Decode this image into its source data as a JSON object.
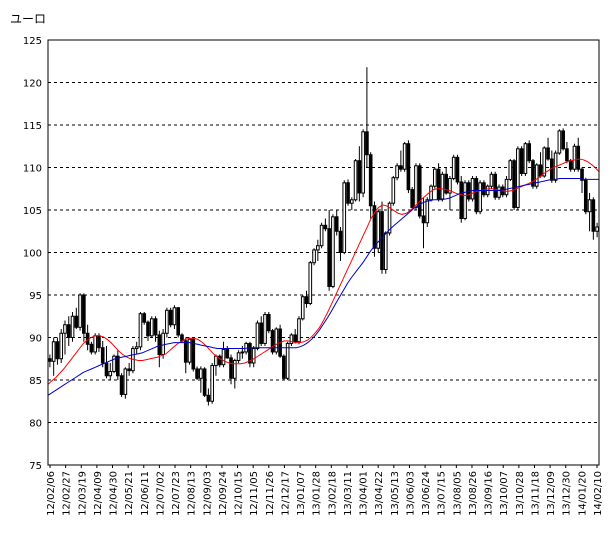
{
  "chart_data": {
    "type": "candlestick",
    "ylabel": "ユーロ",
    "ylim": [
      75,
      125
    ],
    "yticks": [
      75,
      80,
      85,
      90,
      95,
      100,
      105,
      110,
      115,
      120,
      125
    ],
    "grid": true,
    "x_tick_labels": [
      "12/02/06",
      "12/02/27",
      "12/03/19",
      "12/04/09",
      "12/04/30",
      "12/05/21",
      "12/06/11",
      "12/07/02",
      "12/07/23",
      "12/08/13",
      "12/09/03",
      "12/09/24",
      "12/10/15",
      "12/11/05",
      "12/11/26",
      "12/12/17",
      "13/01/07",
      "13/01/28",
      "13/02/18",
      "13/03/11",
      "13/04/01",
      "13/04/22",
      "13/05/13",
      "13/06/03",
      "13/06/24",
      "13/07/15",
      "13/08/05",
      "13/08/26",
      "13/09/16",
      "13/10/07",
      "13/10/28",
      "13/11/18",
      "13/12/09",
      "13/12/30",
      "14/01/20",
      "14/02/10"
    ],
    "candles": [
      [
        87.5,
        88,
        86.5,
        87.2
      ],
      [
        87.2,
        90,
        85.5,
        89.5
      ],
      [
        89.5,
        90,
        86.8,
        87.5
      ],
      [
        87.5,
        91,
        87,
        90.5
      ],
      [
        90.5,
        92,
        88,
        91.5
      ],
      [
        91.5,
        92.5,
        89,
        90
      ],
      [
        90,
        93,
        89.5,
        92.5
      ],
      [
        92.5,
        93.5,
        91,
        91.2
      ],
      [
        91.2,
        95.2,
        90.8,
        95
      ],
      [
        95,
        95.2,
        89.5,
        90.5
      ],
      [
        90.5,
        91.5,
        88.5,
        89.2
      ],
      [
        89.2,
        89.5,
        88,
        88.3
      ],
      [
        88.3,
        90.5,
        88,
        90.2
      ],
      [
        90.2,
        90.5,
        88.3,
        88.8
      ],
      [
        88.8,
        89.6,
        86.5,
        87
      ],
      [
        87,
        89,
        85.2,
        85.5
      ],
      [
        85.5,
        87,
        85,
        86
      ],
      [
        86,
        88,
        85.8,
        87.8
      ],
      [
        87.8,
        88.5,
        85,
        85.5
      ],
      [
        85.5,
        85.8,
        83,
        83.3
      ],
      [
        83.3,
        86.5,
        82.8,
        86.3
      ],
      [
        86.3,
        87,
        85.5,
        86.1
      ],
      [
        86.1,
        89,
        85.8,
        88.7
      ],
      [
        88.7,
        89.5,
        88,
        88.9
      ],
      [
        88.9,
        93,
        88.5,
        92.8
      ],
      [
        92.8,
        93,
        91.5,
        91.8
      ],
      [
        91.8,
        92,
        89.6,
        90.2
      ],
      [
        90.2,
        92.5,
        90,
        92.2
      ],
      [
        92.2,
        92.5,
        89.5,
        90.3
      ],
      [
        90.3,
        90.8,
        86.5,
        88
      ],
      [
        88,
        91,
        87.5,
        90.5
      ],
      [
        90.5,
        93.5,
        90,
        93.2
      ],
      [
        93.2,
        93.5,
        91.2,
        91.5
      ],
      [
        91.5,
        93.8,
        91,
        93.5
      ],
      [
        93.5,
        93.6,
        90,
        90.3
      ],
      [
        90.3,
        90.5,
        89.4,
        89.6
      ],
      [
        89.6,
        90,
        85.8,
        87.1
      ],
      [
        87.1,
        90,
        86.8,
        89.8
      ],
      [
        89.8,
        90,
        86,
        86.3
      ],
      [
        86.3,
        86.6,
        85,
        85.2
      ],
      [
        85.2,
        86.6,
        83.5,
        86.3
      ],
      [
        86.3,
        86.5,
        83,
        83.2
      ],
      [
        83.2,
        84,
        82,
        82.5
      ],
      [
        82.5,
        87,
        82.2,
        86.7
      ],
      [
        86.7,
        88,
        85.5,
        87.8
      ],
      [
        87.8,
        88,
        86.5,
        86.8
      ],
      [
        86.8,
        89.5,
        86.5,
        88.6
      ],
      [
        88.6,
        89,
        87.5,
        87.6
      ],
      [
        87.6,
        88,
        84.5,
        85.2
      ],
      [
        85.2,
        87.5,
        84,
        87.3
      ],
      [
        87.3,
        88.5,
        87,
        88.2
      ],
      [
        88.2,
        89,
        87.5,
        88.3
      ],
      [
        88.3,
        89.5,
        88,
        89.3
      ],
      [
        89.3,
        89.5,
        86.5,
        87
      ],
      [
        87,
        89,
        86.5,
        88.7
      ],
      [
        88.7,
        92,
        88.5,
        91.7
      ],
      [
        91.7,
        92.5,
        89,
        89.3
      ],
      [
        89.3,
        93,
        89,
        92.7
      ],
      [
        92.7,
        93,
        90.5,
        90.8
      ],
      [
        90.8,
        91,
        88,
        88.3
      ],
      [
        88.3,
        91.2,
        88,
        91
      ],
      [
        91,
        91.5,
        87.6,
        87.8
      ],
      [
        87.8,
        88,
        85,
        85.2
      ],
      [
        85.2,
        89.5,
        85,
        89.3
      ],
      [
        89.3,
        90.5,
        89,
        90.3
      ],
      [
        90.3,
        91,
        89.3,
        89.5
      ],
      [
        89.5,
        92.5,
        89.2,
        92.2
      ],
      [
        92.2,
        95,
        92,
        94.8
      ],
      [
        94.8,
        95.5,
        93.5,
        94
      ],
      [
        94,
        99,
        93.8,
        98.8
      ],
      [
        98.8,
        100.5,
        98.5,
        100.3
      ],
      [
        100.3,
        101.5,
        99,
        100.8
      ],
      [
        100.8,
        103.5,
        100.5,
        103.2
      ],
      [
        103.2,
        104,
        102.5,
        102.8
      ],
      [
        102.8,
        105,
        95.5,
        96
      ],
      [
        96,
        104.5,
        95.8,
        104.2
      ],
      [
        104.2,
        105,
        102,
        102.5
      ],
      [
        102.5,
        103,
        99,
        100
      ],
      [
        100,
        108.5,
        99.8,
        108.2
      ],
      [
        108.2,
        108.6,
        105.5,
        105.8
      ],
      [
        105.8,
        106.5,
        105,
        106.2
      ],
      [
        106.2,
        111,
        106,
        110.8
      ],
      [
        110.8,
        112.5,
        106,
        107
      ],
      [
        107,
        114.5,
        106.5,
        114.2
      ],
      [
        114.2,
        121.8,
        110,
        111.5
      ],
      [
        111.5,
        111.8,
        104,
        105.5
      ],
      [
        105.5,
        106,
        99.5,
        100.5
      ],
      [
        100.5,
        105,
        100,
        104.8
      ],
      [
        104.8,
        106,
        97.5,
        98
      ],
      [
        98,
        102.5,
        97.5,
        102.3
      ],
      [
        102.3,
        106,
        102,
        105.8
      ],
      [
        105.8,
        109,
        105.5,
        108.8
      ],
      [
        108.8,
        110.5,
        108.5,
        110.2
      ],
      [
        110.2,
        112,
        109.5,
        109.8
      ],
      [
        109.8,
        113,
        109.5,
        112.8
      ],
      [
        112.8,
        113.2,
        107,
        107.4
      ],
      [
        107.4,
        107.7,
        105,
        105.3
      ],
      [
        105.3,
        110.5,
        105,
        110.2
      ],
      [
        110.2,
        110.5,
        104,
        104.3
      ],
      [
        104.3,
        106.5,
        100.5,
        103.5
      ],
      [
        103.5,
        106.5,
        103,
        106.2
      ],
      [
        106.2,
        108,
        106,
        107.8
      ],
      [
        107.8,
        110,
        107.5,
        109.8
      ],
      [
        109.8,
        110.5,
        106,
        106.3
      ],
      [
        106.3,
        109.5,
        106,
        109.2
      ],
      [
        109.2,
        110,
        106.8,
        107
      ],
      [
        107,
        109,
        105,
        108.7
      ],
      [
        108.7,
        111.5,
        108.5,
        111.2
      ],
      [
        111.2,
        111.5,
        108,
        108.3
      ],
      [
        108.3,
        109,
        103.5,
        104
      ],
      [
        104,
        108.5,
        103.8,
        108.2
      ],
      [
        108.2,
        108.5,
        106,
        106.3
      ],
      [
        106.3,
        109,
        106,
        108.7
      ],
      [
        108.7,
        109,
        104.5,
        104.8
      ],
      [
        104.8,
        108.5,
        104.5,
        108.2
      ],
      [
        108.2,
        108.5,
        106.5,
        106.8
      ],
      [
        106.8,
        108,
        106.5,
        107.8
      ],
      [
        107.8,
        109.5,
        107.5,
        109.2
      ],
      [
        109.2,
        109.5,
        106.2,
        106.5
      ],
      [
        106.5,
        108,
        106.2,
        107.7
      ],
      [
        107.7,
        108,
        106.5,
        106.8
      ],
      [
        106.8,
        109,
        106.5,
        108.6
      ],
      [
        108.6,
        111,
        108.4,
        110.8
      ],
      [
        110.8,
        111,
        105,
        105.3
      ],
      [
        105.3,
        112.5,
        105,
        112.2
      ],
      [
        112.2,
        112.5,
        109,
        109.3
      ],
      [
        109.3,
        113,
        109,
        112.8
      ],
      [
        112.8,
        113.2,
        110.5,
        110.8
      ],
      [
        110.8,
        111,
        107.5,
        107.8
      ],
      [
        107.8,
        110.5,
        107.5,
        110.3
      ],
      [
        110.3,
        111.8,
        108.8,
        109
      ],
      [
        109,
        112.5,
        108.8,
        112.3
      ],
      [
        112.3,
        113.5,
        110.8,
        111
      ],
      [
        111,
        112,
        108.2,
        108.5
      ],
      [
        108.5,
        112,
        108.2,
        111.7
      ],
      [
        111.7,
        114.5,
        111.5,
        114.3
      ],
      [
        114.3,
        114.6,
        112,
        112.2
      ],
      [
        112.2,
        113,
        110.5,
        110.8
      ],
      [
        110.8,
        111,
        109.5,
        109.8
      ],
      [
        109.8,
        112.8,
        109.5,
        112.5
      ],
      [
        112.5,
        113.5,
        109.5,
        109.8
      ],
      [
        109.8,
        110,
        107,
        108.5
      ],
      [
        108.5,
        108.8,
        104.5,
        104.8
      ],
      [
        104.8,
        107,
        102.5,
        106.2
      ],
      [
        106.2,
        106.5,
        101.5,
        102.5
      ],
      [
        102.5,
        103.5,
        101.8,
        103
      ]
    ],
    "series": [
      {
        "name": "",
        "color": "#ff0000",
        "values": [
          84.5,
          84.9,
          85.3,
          85.8,
          86.3,
          86.9,
          87.5,
          88.1,
          88.7,
          89.3,
          89.7,
          90,
          90.2,
          90.2,
          90.1,
          89.8,
          89.4,
          88.9,
          88.4,
          88,
          87.7,
          87.5,
          87.4,
          87.3,
          87.3,
          87.4,
          87.5,
          87.6,
          87.7,
          87.9,
          88.1,
          88.5,
          88.9,
          89.3,
          89.6,
          89.8,
          89.9,
          89.9,
          89.8,
          89.5,
          89.1,
          88.6,
          88.1,
          87.7,
          87.4,
          87.2,
          87,
          86.9,
          86.9,
          86.9,
          87,
          87.2,
          87.4,
          87.7,
          88,
          88.3,
          88.6,
          88.9,
          89.2,
          89.4,
          89.6,
          89.6,
          89.5,
          89.4,
          89.4,
          89.5,
          89.7,
          90.1,
          90.6,
          91.2,
          92,
          92.9,
          93.9,
          94.9,
          95.9,
          96.9,
          97.9,
          98.9,
          99.9,
          100.9,
          101.9,
          102.9,
          103.9,
          104.7,
          105.3,
          105.6,
          105.5,
          105.2,
          104.9,
          104.6,
          104.5,
          104.6,
          104.9,
          105.3,
          105.8,
          106.3,
          106.7,
          107.1,
          107.4,
          107.5,
          107.5,
          107.4,
          107.3,
          107.1,
          106.9,
          106.8,
          106.7,
          106.8,
          107,
          107.2,
          107.3,
          107.4,
          107.5,
          107.5,
          107.4,
          107.3,
          107.2,
          107.2,
          107.3,
          107.5,
          107.7,
          107.9,
          108.1,
          108.3,
          108.6,
          108.9,
          109.3,
          109.6,
          109.9,
          110.1,
          110.3,
          110.5,
          110.7,
          110.8,
          110.9,
          111,
          110.9,
          110.7,
          110.4,
          110,
          109.5
        ]
      },
      {
        "name": "",
        "color": "#0000cc",
        "values": [
          83.2,
          83.5,
          83.8,
          84.1,
          84.4,
          84.7,
          85,
          85.3,
          85.6,
          85.9,
          86.1,
          86.3,
          86.5,
          86.7,
          86.9,
          87.1,
          87.3,
          87.5,
          87.6,
          87.7,
          87.8,
          87.9,
          88,
          88.1,
          88.2,
          88.4,
          88.6,
          88.8,
          89,
          89.1,
          89.2,
          89.3,
          89.4,
          89.4,
          89.4,
          89.4,
          89.4,
          89.3,
          89.2,
          89.1,
          89,
          88.9,
          88.8,
          88.7,
          88.7,
          88.7,
          88.7,
          88.7,
          88.7,
          88.7,
          88.7,
          88.8,
          88.8,
          88.8,
          88.8,
          88.8,
          88.8,
          88.8,
          88.8,
          88.8,
          88.8,
          88.8,
          88.8,
          88.8,
          88.9,
          89.1,
          89.4,
          89.8,
          90.3,
          90.9,
          91.6,
          92.3,
          93.1,
          93.9,
          94.7,
          95.5,
          96.3,
          97,
          97.6,
          98.2,
          98.8,
          99.5,
          100.2,
          100.8,
          101.3,
          101.8,
          102.3,
          102.8,
          103.2,
          103.6,
          104,
          104.4,
          104.8,
          105.2,
          105.5,
          105.8,
          106,
          106.1,
          106.2,
          106.2,
          106.2,
          106.3,
          106.4,
          106.6,
          106.8,
          107,
          107.1,
          107.2,
          107.3,
          107.3,
          107.3,
          107.3,
          107.3,
          107.3,
          107.3,
          107.3,
          107.4,
          107.5,
          107.6,
          107.7,
          107.8,
          107.9,
          108,
          108.1,
          108.2,
          108.3,
          108.4,
          108.5,
          108.6,
          108.6,
          108.7,
          108.7,
          108.7,
          108.7,
          108.7,
          108.7,
          108.6,
          108.6,
          108.6,
          108.6,
          108.6
        ]
      }
    ]
  }
}
